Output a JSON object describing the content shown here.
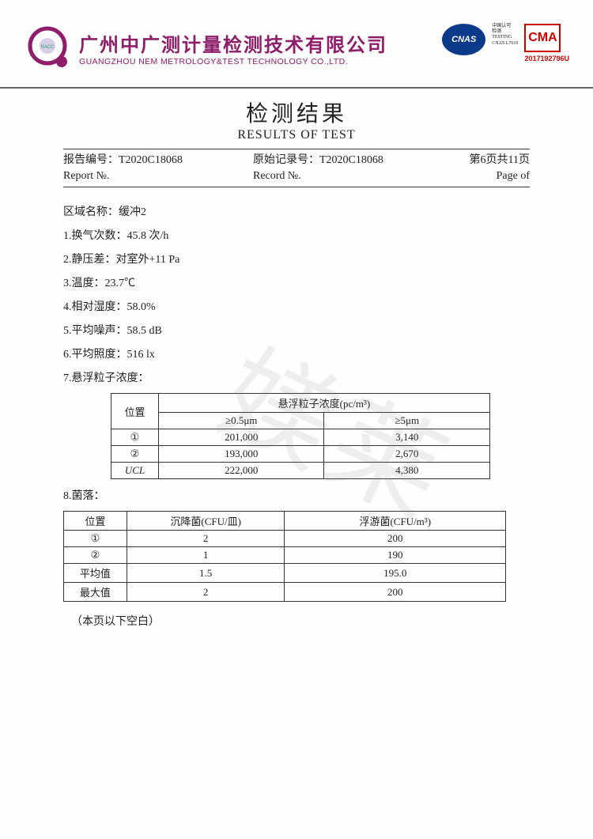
{
  "header": {
    "company_cn": "广州中广测计量检测技术有限公司",
    "company_en": "GUANGZHOU NEM METROLOGY&TEST TECHNOLOGY CO.,LTD.",
    "cnas_label": "CNAS",
    "cnas_text1": "中国认可",
    "cnas_text2": "检测",
    "cnas_text3": "TESTING",
    "cnas_text4": "CNAS L7610",
    "cma_label": "CMA",
    "cma_number": "2017192796U",
    "logo_color": "#8e1d6a",
    "cnas_color": "#0b3a8a",
    "cma_color": "#c00"
  },
  "title": {
    "cn": "检测结果",
    "en": "RESULTS OF TEST"
  },
  "report_bar": {
    "report_no_label_cn": "报告编号：",
    "report_no": "T2020C18068",
    "report_no_label_en": "Report №.",
    "record_no_label_cn": "原始记录号：",
    "record_no": "T2020C18068",
    "record_no_label_en": "Record №.",
    "page_cn": "第6页共11页",
    "page_en": "Page  of"
  },
  "area": {
    "label": "区域名称：",
    "value": "缓冲2"
  },
  "params": [
    {
      "label": "1.换气次数：",
      "value": "45.8 次/h"
    },
    {
      "label": "2.静压差：",
      "value": "对室外+11 Pa"
    },
    {
      "label": "3.温度：",
      "value": "23.7℃"
    },
    {
      "label": "4.相对湿度：",
      "value": "58.0%"
    },
    {
      "label": "5.平均噪声：",
      "value": "58.5 dB"
    },
    {
      "label": "6.平均照度：",
      "value": "516 lx"
    }
  ],
  "t1": {
    "section_label": "7.悬浮粒子浓度：",
    "pos_label": "位置",
    "header": "悬浮粒子浓度(pc/m³)",
    "col1": "≥0.5μm",
    "col2": "≥5μm",
    "rows": [
      {
        "pos": "①",
        "v1": "201,000",
        "v2": "3,140"
      },
      {
        "pos": "②",
        "v1": "193,000",
        "v2": "2,670"
      },
      {
        "pos": "UCL",
        "v1": "222,000",
        "v2": "4,380",
        "italic": true
      }
    ]
  },
  "t2": {
    "section_label": "8.菌落：",
    "pos_label": "位置",
    "col1": "沉降菌(CFU/皿)",
    "col2": "浮游菌(CFU/m³)",
    "rows": [
      {
        "pos": "①",
        "v1": "2",
        "v2": "200"
      },
      {
        "pos": "②",
        "v1": "1",
        "v2": "190"
      },
      {
        "pos": "平均值",
        "v1": "1.5",
        "v2": "195.0"
      },
      {
        "pos": "最大值",
        "v1": "2",
        "v2": "200"
      }
    ]
  },
  "blank_note": "（本页以下空白）",
  "watermark": "媄莱"
}
